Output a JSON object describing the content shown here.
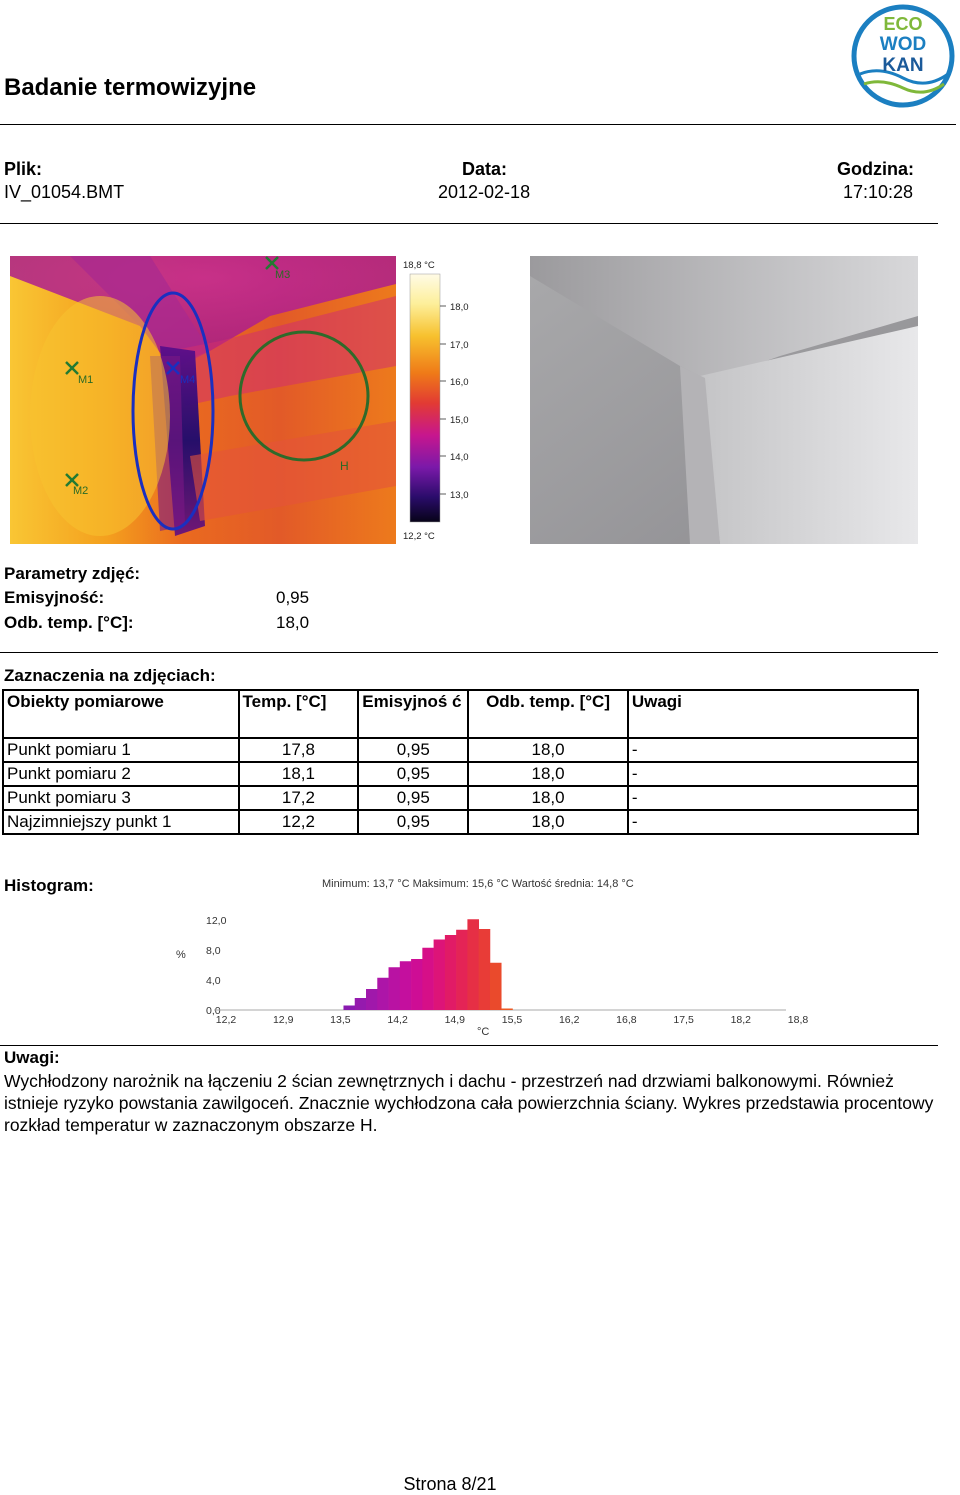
{
  "title": "Badanie termowizyjne",
  "logo": {
    "line1": "ECO",
    "line2": "WOD",
    "line3": "KAN"
  },
  "file": {
    "label": "Plik:",
    "value": "IV_01054.BMT"
  },
  "date": {
    "label": "Data:",
    "value": "2012-02-18"
  },
  "time": {
    "label": "Godzina:",
    "value": "17:10:28"
  },
  "thermal": {
    "markers": [
      "M1",
      "M2",
      "M3",
      "M4",
      "H"
    ],
    "scale": {
      "max": "18,8 °C",
      "min": "12,2 °C",
      "ticks": [
        "18,0",
        "17,0",
        "16,0",
        "15,0",
        "14,0",
        "13,0"
      ]
    }
  },
  "params": {
    "heading": "Parametry zdjęć:",
    "emissivity_label": "Emisyjność:",
    "emissivity_value": "0,95",
    "refl_label": "Odb. temp. [°C]:",
    "refl_value": "18,0"
  },
  "markings_heading": "Zaznaczenia na zdjęciach:",
  "table": {
    "headers": [
      "Obiekty pomiarowe",
      "Temp. [°C]",
      "Emisyjnoś ć",
      "Odb. temp. [°C]",
      "Uwagi"
    ],
    "rows": [
      [
        "Punkt pomiaru 1",
        "17,8",
        "0,95",
        "18,0",
        "-"
      ],
      [
        "Punkt pomiaru 2",
        "18,1",
        "0,95",
        "18,0",
        "-"
      ],
      [
        "Punkt pomiaru 3",
        "17,2",
        "0,95",
        "18,0",
        "-"
      ],
      [
        "Najzimniejszy punkt 1",
        "12,2",
        "0,95",
        "18,0",
        "-"
      ]
    ]
  },
  "histogram_heading": "Histogram:",
  "chart_data": {
    "type": "bar",
    "title": "Minimum: 13,7 °C Maksimum: 15,6 °C Wartość średnia: 14,8 °C",
    "xlabel": "°C",
    "ylabel": "%",
    "x_ticks": [
      "12,2",
      "12,9",
      "13,5",
      "14,2",
      "14,9",
      "15,5",
      "16,2",
      "16,8",
      "17,5",
      "18,2",
      "18,8"
    ],
    "y_ticks": [
      "0,0",
      "4,0",
      "8,0",
      "12,0"
    ],
    "xlim": [
      12.2,
      18.8
    ],
    "ylim": [
      0,
      12
    ],
    "bin_width": 0.129,
    "bins": [
      {
        "x": 13.62,
        "y": 0.6,
        "color": "#8a1bb0"
      },
      {
        "x": 13.75,
        "y": 1.6,
        "color": "#951aae"
      },
      {
        "x": 13.88,
        "y": 2.8,
        "color": "#a018ab"
      },
      {
        "x": 14.01,
        "y": 4.3,
        "color": "#ad15a8"
      },
      {
        "x": 14.14,
        "y": 5.7,
        "color": "#b912a3"
      },
      {
        "x": 14.27,
        "y": 6.5,
        "color": "#c40f9e"
      },
      {
        "x": 14.4,
        "y": 6.8,
        "color": "#ce0d95"
      },
      {
        "x": 14.53,
        "y": 8.3,
        "color": "#d60f88"
      },
      {
        "x": 14.66,
        "y": 9.4,
        "color": "#dd1478"
      },
      {
        "x": 14.79,
        "y": 10.0,
        "color": "#e11b66"
      },
      {
        "x": 14.92,
        "y": 10.7,
        "color": "#e42456"
      },
      {
        "x": 15.05,
        "y": 12.1,
        "color": "#e62f45"
      },
      {
        "x": 15.18,
        "y": 10.8,
        "color": "#e83c37"
      },
      {
        "x": 15.31,
        "y": 6.3,
        "color": "#ea4a2c"
      },
      {
        "x": 15.44,
        "y": 0.2,
        "color": "#ec5a24"
      }
    ]
  },
  "notes": {
    "heading": "Uwagi:",
    "text": "Wychłodzony narożnik na łączeniu 2 ścian zewnętrznych i dachu - przestrzeń nad drzwiami balkonowymi. Również istnieje ryzyko powstania zawilgoceń. Znacznie wychłodzona cała powierzchnia ściany. Wykres przedstawia procentowy rozkład temperatur w zaznaczonym obszarze H."
  },
  "footer": "Strona 8/21"
}
